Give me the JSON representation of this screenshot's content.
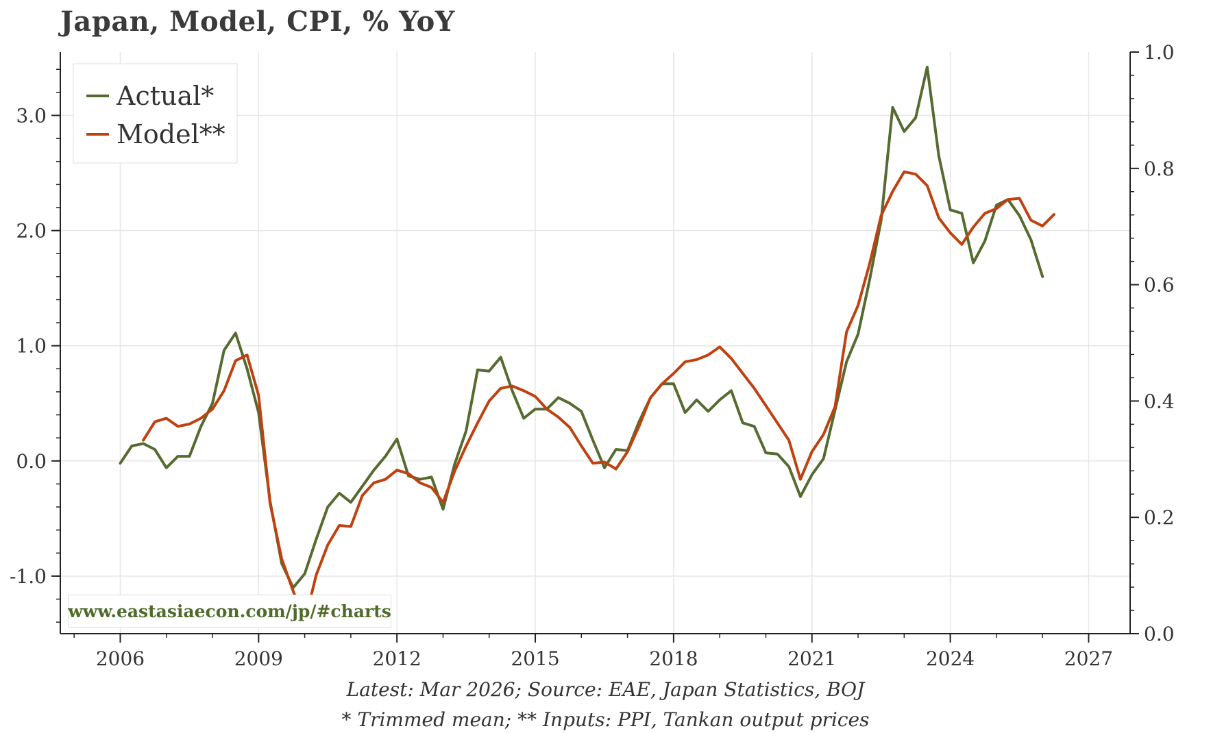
{
  "title": "Japan, Model, CPI, % YoY",
  "watermark": "www.eastasiaecon.com/jp/#charts",
  "footnotes": {
    "line1": "Latest: Mar 2026; Source: EAE, Japan Statistics, BOJ",
    "line2": "* Trimmed mean; ** Inputs: PPI, Tankan output prices"
  },
  "colors": {
    "actual": "#556b2f",
    "model": "#c0410f",
    "grid": "#e6e6e6",
    "axis": "#222222"
  },
  "chart_data": {
    "type": "line",
    "title": "Japan, Model, CPI, % YoY",
    "xlim": [
      2004.7,
      2027.9
    ],
    "ylim": [
      -1.5,
      3.55
    ],
    "ylim_right": [
      0.0,
      1.0
    ],
    "x_ticks": [
      2006,
      2009,
      2012,
      2015,
      2018,
      2021,
      2024,
      2027
    ],
    "x_tick_labels": [
      "2006",
      "2009",
      "2012",
      "2015",
      "2018",
      "2021",
      "2024",
      "2027"
    ],
    "y_ticks": [
      -1.0,
      0.0,
      1.0,
      2.0,
      3.0
    ],
    "y_tick_labels": [
      "-1.0",
      "0.0",
      "1.0",
      "2.0",
      "3.0"
    ],
    "y_ticks_right": [
      0.0,
      0.2,
      0.4,
      0.6,
      0.8,
      1.0
    ],
    "y_tick_labels_right": [
      "0.0",
      "0.2",
      "0.4",
      "0.6",
      "0.8",
      "1.0"
    ],
    "grid": true,
    "legend_position": "top-left",
    "series": [
      {
        "name": "Actual*",
        "color": "#556b2f",
        "x": [
          2006.0,
          2006.25,
          2006.5,
          2006.75,
          2007.0,
          2007.25,
          2007.5,
          2007.75,
          2008.0,
          2008.25,
          2008.5,
          2008.75,
          2009.0,
          2009.25,
          2009.5,
          2009.75,
          2010.0,
          2010.25,
          2010.5,
          2010.75,
          2011.0,
          2011.25,
          2011.5,
          2011.75,
          2012.0,
          2012.25,
          2012.5,
          2012.75,
          2013.0,
          2013.25,
          2013.5,
          2013.75,
          2014.0,
          2014.25,
          2014.5,
          2014.75,
          2015.0,
          2015.25,
          2015.5,
          2015.75,
          2016.0,
          2016.25,
          2016.5,
          2016.75,
          2017.0,
          2017.25,
          2017.5,
          2017.75,
          2018.0,
          2018.25,
          2018.5,
          2018.75,
          2019.0,
          2019.25,
          2019.5,
          2019.75,
          2020.0,
          2020.25,
          2020.5,
          2020.75,
          2021.0,
          2021.25,
          2021.5,
          2021.75,
          2022.0,
          2022.25,
          2022.5,
          2022.75,
          2023.0,
          2023.25,
          2023.5,
          2023.75,
          2024.0,
          2024.25,
          2024.5,
          2024.75,
          2025.0,
          2025.25,
          2025.5,
          2025.75,
          2026.0
        ],
        "values": [
          -0.02,
          0.13,
          0.15,
          0.1,
          -0.06,
          0.04,
          0.04,
          0.3,
          0.5,
          0.96,
          1.11,
          0.8,
          0.42,
          -0.35,
          -0.89,
          -1.1,
          -0.98,
          -0.68,
          -0.4,
          -0.28,
          -0.36,
          -0.22,
          -0.08,
          0.04,
          0.19,
          -0.13,
          -0.16,
          -0.14,
          -0.42,
          -0.03,
          0.26,
          0.79,
          0.78,
          0.9,
          0.61,
          0.37,
          0.45,
          0.45,
          0.55,
          0.5,
          0.43,
          0.18,
          -0.06,
          0.1,
          0.09,
          0.34,
          0.55,
          0.67,
          0.67,
          0.42,
          0.53,
          0.43,
          0.53,
          0.61,
          0.33,
          0.3,
          0.07,
          0.06,
          -0.05,
          -0.31,
          -0.12,
          0.02,
          0.44,
          0.86,
          1.1,
          1.57,
          2.09,
          3.07,
          2.86,
          2.98,
          3.42,
          2.65,
          2.18,
          2.15,
          1.72,
          1.91,
          2.22,
          2.27,
          2.13,
          1.92,
          1.6
        ]
      },
      {
        "name": "Model**",
        "color": "#c0410f",
        "x": [
          2006.5,
          2006.75,
          2007.0,
          2007.25,
          2007.5,
          2007.75,
          2008.0,
          2008.25,
          2008.5,
          2008.75,
          2009.0,
          2009.25,
          2009.5,
          2009.75,
          2010.0,
          2010.25,
          2010.5,
          2010.75,
          2011.0,
          2011.25,
          2011.5,
          2011.75,
          2012.0,
          2012.25,
          2012.5,
          2012.75,
          2013.0,
          2013.25,
          2013.5,
          2013.75,
          2014.0,
          2014.25,
          2014.5,
          2014.75,
          2015.0,
          2015.25,
          2015.5,
          2015.75,
          2016.0,
          2016.25,
          2016.5,
          2016.75,
          2017.0,
          2017.25,
          2017.5,
          2017.75,
          2018.0,
          2018.25,
          2018.5,
          2018.75,
          2019.0,
          2019.25,
          2019.5,
          2019.75,
          2020.0,
          2020.25,
          2020.5,
          2020.75,
          2021.0,
          2021.25,
          2021.5,
          2021.75,
          2022.0,
          2022.25,
          2022.5,
          2022.75,
          2023.0,
          2023.25,
          2023.5,
          2023.75,
          2024.0,
          2024.25,
          2024.5,
          2024.75,
          2025.0,
          2025.25,
          2025.5,
          2025.75,
          2026.0,
          2026.25
        ],
        "values": [
          0.18,
          0.34,
          0.37,
          0.3,
          0.32,
          0.37,
          0.45,
          0.61,
          0.87,
          0.92,
          0.57,
          -0.37,
          -0.85,
          -1.13,
          -1.4,
          -0.99,
          -0.73,
          -0.56,
          -0.57,
          -0.3,
          -0.19,
          -0.16,
          -0.08,
          -0.11,
          -0.19,
          -0.23,
          -0.36,
          -0.09,
          0.13,
          0.33,
          0.52,
          0.63,
          0.65,
          0.61,
          0.56,
          0.45,
          0.38,
          0.29,
          0.13,
          -0.02,
          -0.01,
          -0.07,
          0.08,
          0.3,
          0.55,
          0.67,
          0.76,
          0.86,
          0.88,
          0.92,
          0.99,
          0.89,
          0.76,
          0.63,
          0.48,
          0.33,
          0.18,
          -0.16,
          0.08,
          0.23,
          0.47,
          1.12,
          1.35,
          1.71,
          2.13,
          2.34,
          2.51,
          2.49,
          2.39,
          2.11,
          1.98,
          1.88,
          2.03,
          2.15,
          2.19,
          2.27,
          2.28,
          2.09,
          2.04,
          2.14
        ]
      }
    ]
  }
}
